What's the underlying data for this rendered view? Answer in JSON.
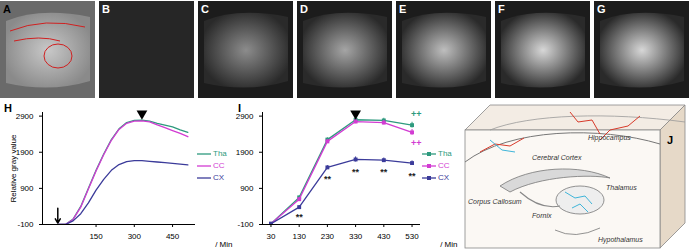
{
  "panels": {
    "labels": [
      "A",
      "B",
      "C",
      "D",
      "E",
      "F",
      "G"
    ]
  },
  "chart_data": [
    {
      "panel": "H",
      "type": "line",
      "x_label": "/ Min",
      "y_label": "Relative gray value",
      "x": [
        0,
        30,
        60,
        90,
        120,
        150,
        180,
        210,
        240,
        270,
        300,
        330,
        360,
        390,
        420,
        450,
        480,
        510
      ],
      "series": [
        {
          "name": "Tha",
          "color": "#2e9a7e",
          "values": [
            -100,
            -100,
            50,
            400,
            900,
            1400,
            1850,
            2250,
            2550,
            2720,
            2780,
            2790,
            2760,
            2700,
            2650,
            2600,
            2520,
            2450
          ]
        },
        {
          "name": "CC",
          "color": "#d23cd2",
          "values": [
            -100,
            -100,
            40,
            380,
            880,
            1380,
            1830,
            2230,
            2530,
            2700,
            2760,
            2770,
            2740,
            2660,
            2580,
            2500,
            2420,
            2330
          ]
        },
        {
          "name": "CX",
          "color": "#3b3b9a",
          "values": [
            -100,
            -100,
            0,
            200,
            500,
            850,
            1150,
            1400,
            1560,
            1640,
            1670,
            1670,
            1650,
            1630,
            1610,
            1590,
            1570,
            1550
          ]
        }
      ],
      "xlim": [
        -60,
        540
      ],
      "xticks": [
        150,
        300,
        450
      ],
      "ylim": [
        -100,
        3000
      ],
      "yticks": [
        -100,
        900,
        1900,
        2900
      ],
      "arrow": {
        "x": 0,
        "y1": 350,
        "y2": -60
      },
      "arrowhead": {
        "x": 330,
        "y": 2970
      }
    },
    {
      "panel": "I",
      "type": "line",
      "marker": "square",
      "x_label": "/ Min",
      "x": [
        30,
        130,
        230,
        330,
        430,
        530
      ],
      "series": [
        {
          "name": "Tha",
          "color": "#2e9a7e",
          "values": [
            -80,
            650,
            2250,
            2800,
            2780,
            2650
          ],
          "errors": [
            20,
            40,
            50,
            60,
            60,
            80
          ]
        },
        {
          "name": "CC",
          "color": "#d23cd2",
          "values": [
            -80,
            600,
            2200,
            2750,
            2720,
            2450
          ],
          "errors": [
            20,
            40,
            50,
            60,
            60,
            80
          ]
        },
        {
          "name": "CX",
          "color": "#3b3b9a",
          "values": [
            -80,
            380,
            1480,
            1700,
            1680,
            1600
          ],
          "errors": [
            20,
            40,
            50,
            70,
            60,
            60
          ]
        }
      ],
      "xlim": [
        0,
        560
      ],
      "xticks": [
        30,
        130,
        230,
        330,
        430,
        530
      ],
      "ylim": [
        -100,
        3000
      ],
      "yticks": [
        -100,
        900,
        1900,
        2900
      ],
      "arrowhead": {
        "x": 330,
        "y": 2970
      },
      "annotations": [
        {
          "text": "**",
          "x": 130,
          "y": 100,
          "color": "#222222"
        },
        {
          "text": "**",
          "x": 230,
          "y": 1150,
          "color": "#222222"
        },
        {
          "text": "**",
          "x": 330,
          "y": 1350,
          "color": "#222222"
        },
        {
          "text": "**",
          "x": 430,
          "y": 1350,
          "color": "#222222"
        },
        {
          "text": "**",
          "x": 530,
          "y": 1250,
          "color": "#222222"
        },
        {
          "text": "++",
          "x": 545,
          "y": 2950,
          "color": "#2e9a7e"
        },
        {
          "text": "++",
          "x": 545,
          "y": 2150,
          "color": "#d23cd2"
        }
      ]
    }
  ],
  "diagram": {
    "panel": "J",
    "regions": [
      "Cerebral Cortex",
      "Corpus Callosum",
      "Hippocampus",
      "Fornix",
      "Thalamus",
      "Hypothalamus"
    ]
  }
}
